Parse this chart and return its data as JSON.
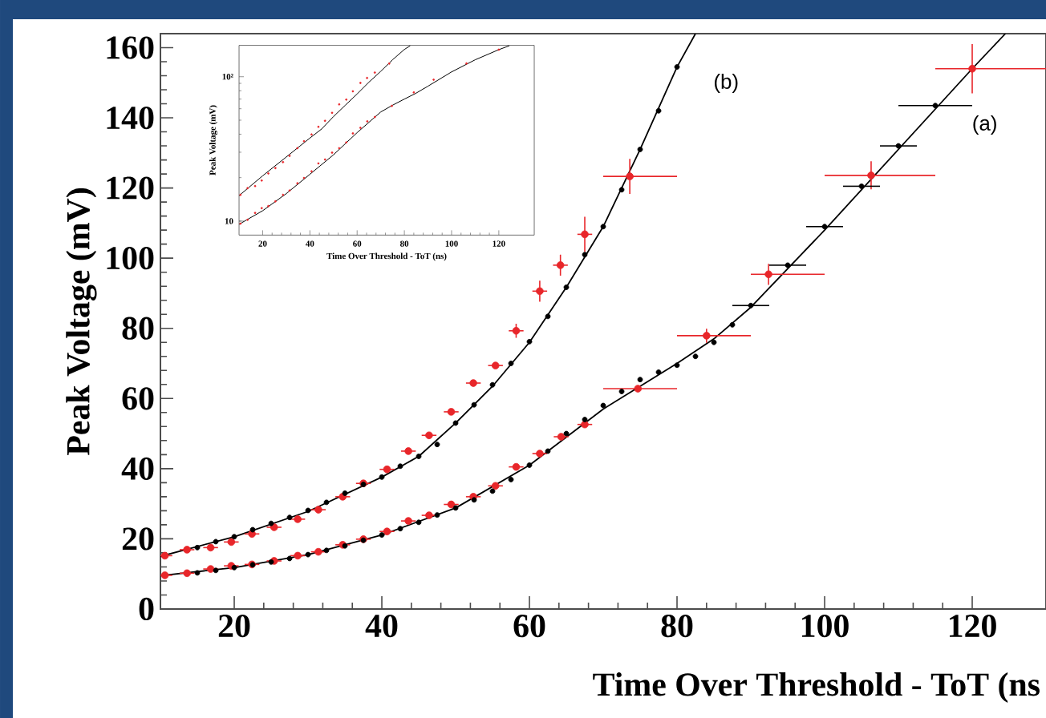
{
  "chart_data": [
    {
      "type": "scatter",
      "xlabel": "Time Over Threshold - ToT (ns",
      "ylabel": "Peak Voltage (mV)",
      "xlim": [
        10,
        130
      ],
      "ylim": [
        0,
        164
      ],
      "xticks": [
        20,
        40,
        60,
        80,
        100,
        120
      ],
      "yticks": [
        0,
        20,
        40,
        60,
        80,
        100,
        120,
        140,
        160
      ],
      "annotations": [
        "(b)",
        "(a)"
      ],
      "series": [
        {
          "type": "line",
          "marker": "none",
          "color": "#000000",
          "x": [
            10,
            20,
            30,
            40,
            45,
            50,
            55,
            60,
            65,
            70,
            75,
            80,
            82.5
          ],
          "values": [
            15,
            20.6,
            27.8,
            37.6,
            43.5,
            53,
            63.5,
            76,
            91.7,
            109,
            131,
            154.5,
            164
          ]
        },
        {
          "type": "line",
          "marker": "none",
          "color": "#000000",
          "x": [
            10,
            20,
            30,
            40,
            50,
            60,
            70,
            75,
            80,
            85,
            90,
            100,
            110,
            120,
            124.5
          ],
          "values": [
            9.5,
            11.8,
            15.5,
            21.1,
            28.8,
            41,
            57,
            63.5,
            70,
            77,
            86,
            108,
            131,
            154,
            164
          ]
        },
        {
          "color": "#e8262a",
          "x": [
            10.6,
            13.6,
            16.8,
            19.6,
            22.4,
            25.4,
            28.6,
            31.4,
            34.7,
            37.5,
            40.7,
            43.6,
            46.4,
            49.4,
            52.4,
            55.4,
            58.2,
            61.4,
            64.2,
            67.5,
            73.6
          ],
          "values": [
            15.2,
            16.9,
            17.5,
            19.1,
            21.4,
            23.3,
            25.6,
            28.3,
            32,
            35.8,
            39.8,
            45,
            49.5,
            56.2,
            64.4,
            69.4,
            79.3,
            90.6,
            98,
            106.8,
            123.3
          ],
          "xerrors": [
            1,
            1,
            1,
            1,
            1,
            1,
            1,
            1,
            1,
            1,
            1,
            1,
            1,
            1,
            1,
            1,
            1,
            1,
            1,
            1,
            [
              70,
              80
            ]
          ],
          "errors": [
            null,
            null,
            null,
            null,
            null,
            null,
            null,
            null,
            null,
            null,
            null,
            null,
            null,
            null,
            null,
            null,
            2,
            3,
            3,
            5,
            5
          ]
        },
        {
          "color": "#e8262a",
          "x": [
            10.6,
            13.6,
            16.8,
            19.6,
            22.4,
            25.4,
            28.6,
            31.4,
            34.7,
            37.5,
            40.7,
            43.6,
            46.4,
            49.4,
            52.4,
            55.4,
            58.2,
            61.4,
            64.3,
            67.5,
            74.7,
            84,
            92.4,
            106.3,
            120
          ],
          "values": [
            9.6,
            10.2,
            11.4,
            12.3,
            12.7,
            13.7,
            15.2,
            16.3,
            18.3,
            19.9,
            22.1,
            25.1,
            26.7,
            29.8,
            32,
            35.1,
            40.5,
            44.3,
            49.1,
            52.6,
            62.8,
            77.9,
            95.4,
            123.6,
            154
          ],
          "xerrors": [
            1,
            1,
            1,
            1,
            1,
            1,
            1,
            1,
            1,
            1,
            1,
            1,
            1,
            1,
            1,
            1,
            1,
            1,
            1,
            1,
            [
              70,
              80
            ],
            [
              80,
              90
            ],
            [
              90,
              100
            ],
            [
              100,
              115
            ],
            [
              115,
              130
            ]
          ],
          "errors": [
            null,
            null,
            null,
            null,
            null,
            null,
            null,
            null,
            null,
            null,
            null,
            null,
            null,
            null,
            null,
            null,
            null,
            null,
            null,
            null,
            null,
            2,
            3,
            4,
            7
          ]
        },
        {
          "color": "#000000",
          "x": [
            15,
            17.5,
            20,
            22.5,
            25,
            27.5,
            30,
            32.5,
            35,
            37.5,
            40,
            42.5,
            45,
            47.5,
            50,
            52.5,
            55,
            57.5,
            60,
            62.5,
            65,
            67.5,
            70,
            72.5,
            75,
            77.5,
            80
          ],
          "values": [
            17.5,
            19.2,
            20.6,
            22.6,
            24.4,
            26.1,
            28.1,
            30.4,
            33,
            35.5,
            37.6,
            40.7,
            43.5,
            46.9,
            53,
            58.2,
            63.9,
            70,
            76.2,
            83.4,
            91.7,
            101,
            109,
            119.5,
            131,
            142,
            154.5
          ]
        },
        {
          "color": "#000000",
          "x": [
            15,
            17.5,
            20,
            22.5,
            25,
            27.5,
            30,
            32.5,
            35,
            37.5,
            40,
            42.5,
            45,
            47.5,
            50,
            52.5,
            55,
            57.5,
            60,
            62.5,
            65,
            67.5,
            70,
            72.5,
            75,
            77.5,
            80,
            82.5,
            85,
            87.5,
            90,
            95,
            100,
            105,
            110,
            115
          ],
          "values": [
            10.3,
            11,
            11.8,
            12.6,
            13.4,
            14.4,
            15.5,
            16.7,
            18,
            19.6,
            21.1,
            22.9,
            24.7,
            26.8,
            28.8,
            31.1,
            33.6,
            36.9,
            41,
            45,
            50,
            54,
            58,
            62,
            65.4,
            67.5,
            69.5,
            72,
            76,
            81,
            86.5,
            98,
            109,
            120.5,
            132,
            143.5
          ],
          "xerrors": [
            null,
            null,
            null,
            null,
            null,
            null,
            null,
            null,
            null,
            null,
            null,
            null,
            null,
            null,
            null,
            null,
            null,
            null,
            null,
            null,
            null,
            null,
            null,
            null,
            null,
            null,
            null,
            null,
            null,
            null,
            2.5,
            2.5,
            2.5,
            2.5,
            2.5,
            5
          ]
        }
      ]
    },
    {
      "type": "scatter",
      "xlabel": "Time Over Threshold - ToT (ns)",
      "ylabel": "Peak Voltage (mV)",
      "log": "y",
      "xlim": [
        10,
        135
      ],
      "ylim": [
        8,
        165
      ],
      "xticks": [
        20,
        40,
        60,
        80,
        100,
        120
      ],
      "yticks": [
        10,
        {
          "value": 100,
          "label": "10²"
        }
      ],
      "series": [
        {
          "type": "line",
          "marker": "none",
          "color": "#000000",
          "x": [
            10,
            20,
            30,
            40,
            45,
            50,
            55,
            60,
            65,
            70,
            75,
            80,
            82.5
          ],
          "values": [
            15,
            20.6,
            27.8,
            37.6,
            43.5,
            53,
            63.5,
            76,
            91.7,
            109,
            131,
            154.5,
            164
          ]
        },
        {
          "type": "line",
          "marker": "none",
          "color": "#000000",
          "x": [
            10,
            20,
            30,
            40,
            50,
            60,
            70,
            75,
            80,
            85,
            90,
            100,
            110,
            120,
            124.5
          ],
          "values": [
            9.5,
            11.8,
            15.5,
            21.1,
            28.8,
            41,
            57,
            63.5,
            70,
            77,
            86,
            108,
            131,
            154,
            164
          ]
        },
        {
          "color": "#e8262a",
          "x": [
            10.6,
            13.6,
            16.8,
            19.6,
            22.4,
            25.4,
            28.6,
            31.4,
            34.7,
            37.5,
            40.7,
            43.6,
            46.4,
            49.4,
            52.4,
            55.4,
            58.2,
            61.4,
            64.2,
            67.5,
            73.6
          ],
          "values": [
            15.2,
            16.9,
            17.5,
            19.1,
            21.4,
            23.3,
            25.6,
            28.3,
            32,
            35.8,
            39.8,
            45,
            49.5,
            56.2,
            64.4,
            69.4,
            79.3,
            90.6,
            98,
            106.8,
            123.3
          ]
        },
        {
          "color": "#e8262a",
          "x": [
            10.6,
            13.6,
            16.8,
            19.6,
            22.4,
            25.4,
            28.6,
            31.4,
            34.7,
            37.5,
            40.7,
            43.6,
            46.4,
            49.4,
            52.4,
            55.4,
            58.2,
            61.4,
            64.3,
            67.5,
            74.7,
            84,
            92.4,
            106.3,
            120
          ],
          "values": [
            9.6,
            10.2,
            11.4,
            12.3,
            12.7,
            13.7,
            15.2,
            16.3,
            18.3,
            19.9,
            22.1,
            25.1,
            26.7,
            29.8,
            32,
            35.1,
            40.5,
            44.3,
            49.1,
            52.6,
            62.8,
            77.9,
            95.4,
            123.6,
            154
          ]
        }
      ]
    }
  ]
}
